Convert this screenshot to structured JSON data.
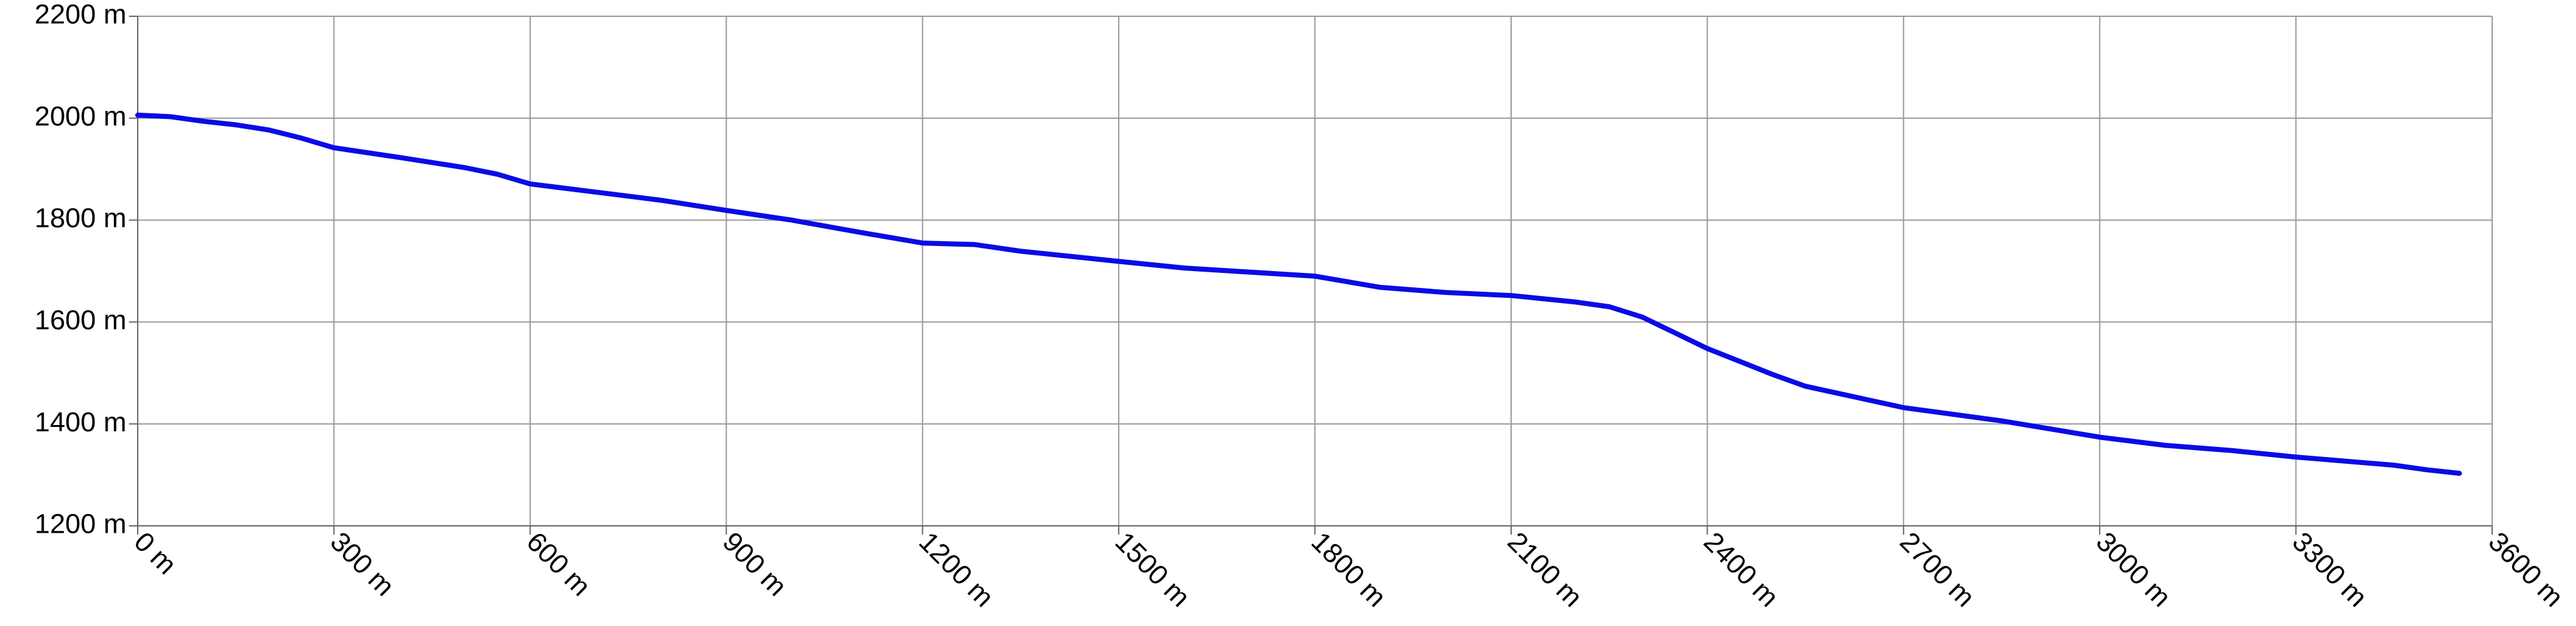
{
  "chart_data": {
    "type": "line",
    "x": [
      0,
      50,
      100,
      150,
      200,
      250,
      300,
      400,
      500,
      550,
      600,
      700,
      800,
      900,
      1000,
      1100,
      1200,
      1280,
      1350,
      1500,
      1600,
      1800,
      1900,
      2000,
      2100,
      2200,
      2250,
      2300,
      2400,
      2500,
      2550,
      2700,
      2850,
      3000,
      3100,
      3200,
      3300,
      3450,
      3500,
      3550
    ],
    "values": [
      2006,
      2003,
      1994,
      1987,
      1977,
      1961,
      1942,
      1923,
      1903,
      1890,
      1871,
      1855,
      1839,
      1819,
      1800,
      1777,
      1755,
      1752,
      1739,
      1719,
      1706,
      1690,
      1668,
      1658,
      1652,
      1639,
      1630,
      1610,
      1548,
      1497,
      1474,
      1432,
      1406,
      1374,
      1358,
      1348,
      1335,
      1319,
      1310,
      1303
    ],
    "color": "#0a0ae6",
    "xlim": [
      0,
      3600
    ],
    "xticks": [
      {
        "value": 0,
        "label": "0 m"
      },
      {
        "value": 300,
        "label": "300 m"
      },
      {
        "value": 600,
        "label": "600 m"
      },
      {
        "value": 900,
        "label": "900 m"
      },
      {
        "value": 1200,
        "label": "1200 m"
      },
      {
        "value": 1500,
        "label": "1500 m"
      },
      {
        "value": 1800,
        "label": "1800 m"
      },
      {
        "value": 2100,
        "label": "2100 m"
      },
      {
        "value": 2400,
        "label": "2400 m"
      },
      {
        "value": 2700,
        "label": "2700 m"
      },
      {
        "value": 3000,
        "label": "3000 m"
      },
      {
        "value": 3300,
        "label": "3300 m"
      },
      {
        "value": 3600,
        "label": "3600 m"
      }
    ],
    "ylim": [
      1200,
      2200
    ],
    "yticks": [
      {
        "value": 1200,
        "label": "1200 m"
      },
      {
        "value": 1400,
        "label": "1400 m"
      },
      {
        "value": 1600,
        "label": "1600 m"
      },
      {
        "value": 1800,
        "label": "1800 m"
      },
      {
        "value": 2000,
        "label": "2000 m"
      },
      {
        "value": 2200,
        "label": "2200 m"
      }
    ],
    "grid": true
  }
}
